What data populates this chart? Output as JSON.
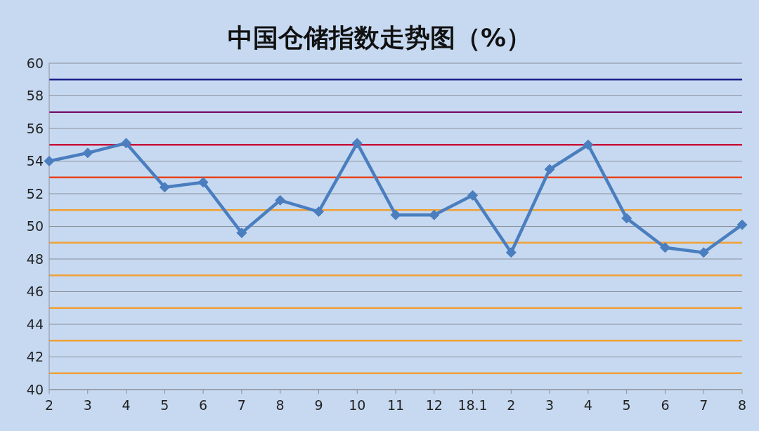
{
  "chart_data": {
    "type": "line",
    "title": "中国仓储指数走势图（%）",
    "categories": [
      "2",
      "3",
      "4",
      "5",
      "6",
      "7",
      "8",
      "9",
      "10",
      "11",
      "12",
      "18.1",
      "2",
      "3",
      "4",
      "5",
      "6",
      "7",
      "8"
    ],
    "series": [
      {
        "color": "#4a7ebf",
        "values": [
          54.0,
          54.5,
          55.1,
          52.4,
          52.7,
          49.6,
          51.6,
          50.9,
          55.1,
          50.7,
          50.7,
          51.9,
          48.4,
          53.5,
          55.0,
          50.5,
          48.7,
          48.4,
          50.1
        ]
      }
    ],
    "ylim": [
      40,
      60
    ],
    "yticks": [
      40,
      42,
      44,
      46,
      48,
      50,
      52,
      54,
      56,
      58,
      60
    ],
    "grid": "y",
    "legend": false,
    "marker": "diamond",
    "line_style": "solid",
    "ref_lines": [
      {
        "axis": "y",
        "value": 59,
        "color": "#1a1f8a"
      },
      {
        "axis": "y",
        "value": 57,
        "color": "#7a1870"
      },
      {
        "axis": "y",
        "value": 55,
        "color": "#c8143c"
      },
      {
        "axis": "y",
        "value": 53,
        "color": "#e8421c"
      },
      {
        "axis": "y",
        "value": 51,
        "color": "#f0a035"
      },
      {
        "axis": "y",
        "value": 49,
        "color": "#f0a035"
      },
      {
        "axis": "y",
        "value": 47,
        "color": "#f0a035"
      },
      {
        "axis": "y",
        "value": 45,
        "color": "#f0a035"
      },
      {
        "axis": "y",
        "value": 43,
        "color": "#f0a035"
      },
      {
        "axis": "y",
        "value": 41,
        "color": "#f0a035"
      }
    ]
  }
}
